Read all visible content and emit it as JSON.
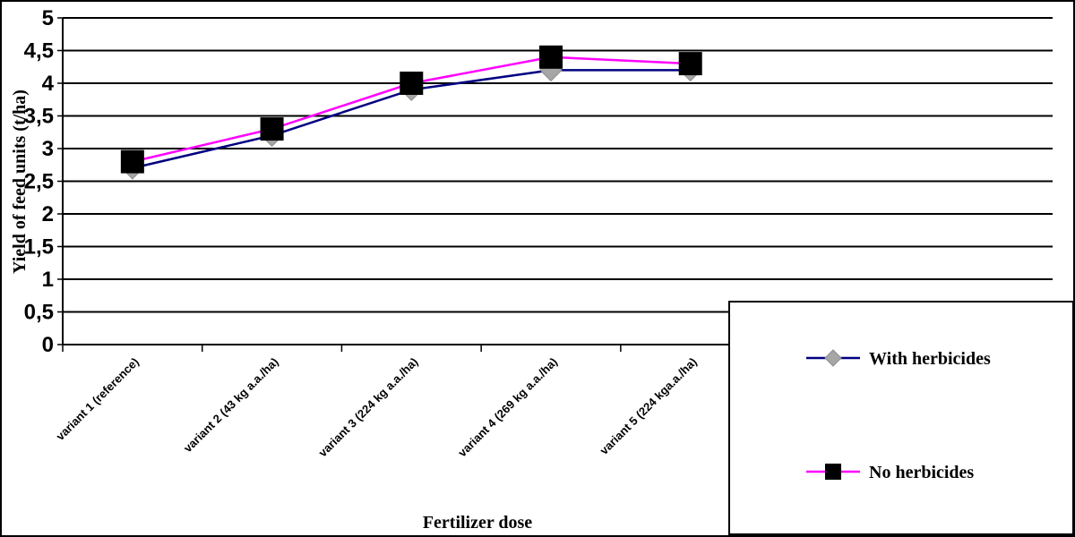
{
  "chart_data": {
    "type": "line",
    "categories": [
      "variant 1 (reference)",
      "variant 2 (43 kg a.a./ha)",
      "variant 3 (224 kg a.a./ha)",
      "variant 4 (269 kg a.a./ha)",
      "variant 5 (224 kga.a./ha)"
    ],
    "series": [
      {
        "name": "With herbicides",
        "values": [
          2.7,
          3.2,
          3.9,
          4.2,
          4.2
        ],
        "color": "#000080",
        "marker": "diamond",
        "marker_color": "#a6a6a6"
      },
      {
        "name": "No herbicides",
        "values": [
          2.8,
          3.3,
          4.0,
          4.4,
          4.3
        ],
        "color": "#ff00ff",
        "marker": "square",
        "marker_color": "#000000"
      }
    ],
    "title": "",
    "xlabel": "Fertilizer dose",
    "ylabel": "Yield of feed units (t/ha)",
    "ylim": [
      0,
      5
    ],
    "yticks": [
      "0",
      "0,5",
      "1",
      "1,5",
      "2",
      "2,5",
      "3",
      "3,5",
      "4",
      "4,5",
      "5"
    ],
    "grid": true,
    "legend_position": "bottom-right"
  }
}
